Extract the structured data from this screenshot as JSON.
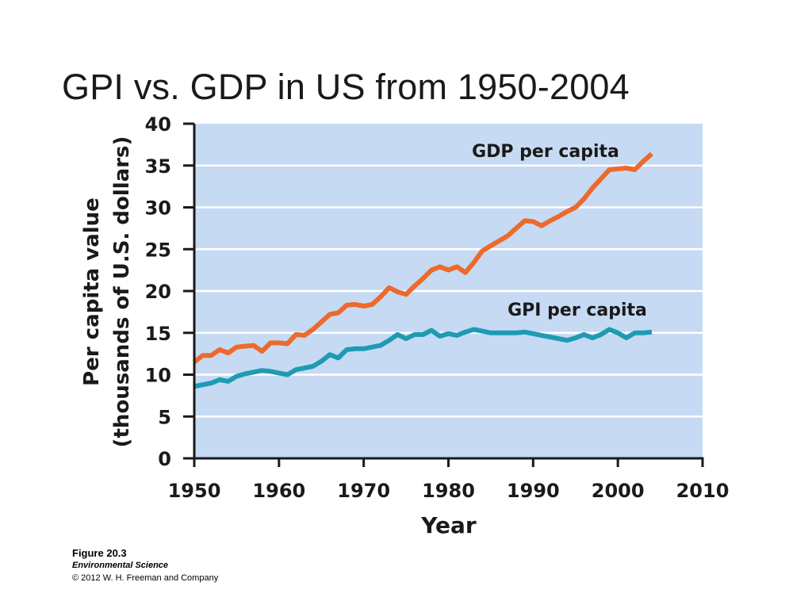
{
  "slide": {
    "title": "GPI vs. GDP in US from 1950-2004"
  },
  "caption": {
    "figure": "Figure 20.3",
    "book": "Environmental Science",
    "copyright": "© 2012 W. H. Freeman and Company"
  },
  "colors": {
    "plot_background": "#c6daf3",
    "gridline": "#ffffff",
    "gdp_line": "#ec6a2c",
    "gpi_line": "#1e9bb2",
    "axis": "#1a1a1a"
  },
  "chart_data": {
    "type": "line",
    "title": "",
    "xlabel": "Year",
    "ylabel_line1": "Per capita value",
    "ylabel_line2": "(thousands of U.S. dollars)",
    "xlim": [
      1950,
      2010
    ],
    "ylim": [
      0,
      40
    ],
    "x_ticks": [
      1950,
      1960,
      1970,
      1980,
      1990,
      2000,
      2010
    ],
    "y_ticks": [
      0,
      5,
      10,
      15,
      20,
      25,
      30,
      35,
      40
    ],
    "grid": true,
    "series": [
      {
        "name": "GDP per capita",
        "label": "GDP per capita",
        "color": "#ec6a2c",
        "x": [
          1950,
          1951,
          1952,
          1953,
          1954,
          1955,
          1956,
          1957,
          1958,
          1959,
          1960,
          1961,
          1962,
          1963,
          1964,
          1965,
          1966,
          1967,
          1968,
          1969,
          1970,
          1971,
          1972,
          1973,
          1974,
          1975,
          1976,
          1977,
          1978,
          1979,
          1980,
          1981,
          1982,
          1983,
          1984,
          1985,
          1986,
          1987,
          1988,
          1989,
          1990,
          1991,
          1992,
          1993,
          1994,
          1995,
          1996,
          1997,
          1998,
          1999,
          2000,
          2001,
          2002,
          2003,
          2004
        ],
        "values": [
          11.5,
          12.3,
          12.3,
          13.0,
          12.6,
          13.3,
          13.4,
          13.5,
          12.8,
          13.8,
          13.8,
          13.7,
          14.8,
          14.7,
          15.4,
          16.3,
          17.2,
          17.4,
          18.3,
          18.4,
          18.2,
          18.4,
          19.3,
          20.4,
          19.9,
          19.6,
          20.6,
          21.5,
          22.5,
          22.9,
          22.5,
          22.9,
          22.2,
          23.4,
          24.8,
          25.4,
          26.0,
          26.6,
          27.5,
          28.4,
          28.3,
          27.8,
          28.4,
          28.9,
          29.5,
          30.0,
          31.0,
          32.3,
          33.4,
          34.5,
          34.6,
          34.7,
          34.5,
          35.5,
          36.4
        ]
      },
      {
        "name": "GPI per capita",
        "label": "GPI per capita",
        "color": "#1e9bb2",
        "x": [
          1950,
          1951,
          1952,
          1953,
          1954,
          1955,
          1956,
          1957,
          1958,
          1959,
          1960,
          1961,
          1962,
          1963,
          1964,
          1965,
          1966,
          1967,
          1968,
          1969,
          1970,
          1971,
          1972,
          1973,
          1974,
          1975,
          1976,
          1977,
          1978,
          1979,
          1980,
          1981,
          1982,
          1983,
          1984,
          1985,
          1986,
          1987,
          1988,
          1989,
          1990,
          1991,
          1992,
          1993,
          1994,
          1995,
          1996,
          1997,
          1998,
          1999,
          2000,
          2001,
          2002,
          2003,
          2004
        ],
        "values": [
          8.6,
          8.8,
          9.0,
          9.4,
          9.2,
          9.8,
          10.1,
          10.3,
          10.5,
          10.4,
          10.2,
          10.0,
          10.6,
          10.8,
          11.0,
          11.6,
          12.4,
          12.0,
          13.0,
          13.1,
          13.1,
          13.3,
          13.5,
          14.1,
          14.8,
          14.3,
          14.8,
          14.8,
          15.3,
          14.6,
          14.9,
          14.7,
          15.1,
          15.4,
          15.2,
          15.0,
          15.0,
          15.0,
          15.0,
          15.1,
          14.9,
          14.7,
          14.5,
          14.3,
          14.1,
          14.4,
          14.8,
          14.4,
          14.8,
          15.4,
          15.0,
          14.4,
          15.0,
          15.0,
          15.1
        ]
      }
    ]
  }
}
